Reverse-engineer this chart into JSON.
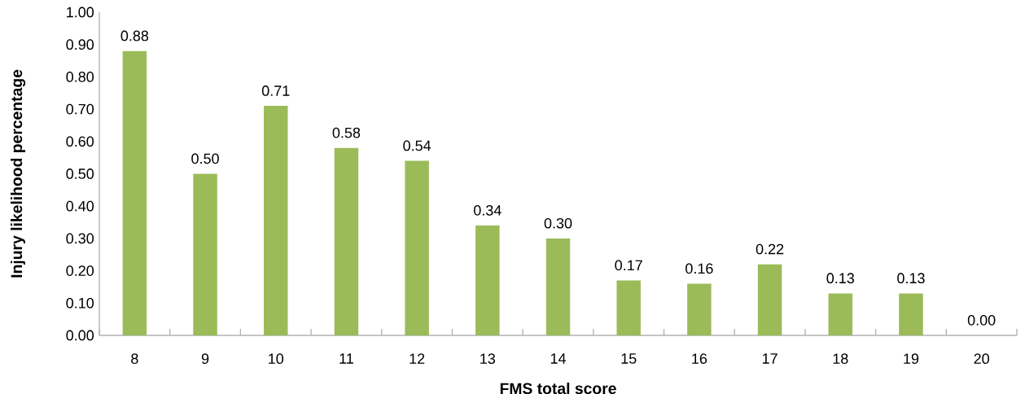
{
  "chart_data": {
    "type": "bar",
    "xlabel": "FMS total score",
    "ylabel": "Injury likelihood percentage",
    "categories": [
      "8",
      "9",
      "10",
      "11",
      "12",
      "13",
      "14",
      "15",
      "16",
      "17",
      "18",
      "19",
      "20"
    ],
    "values": [
      0.88,
      0.5,
      0.71,
      0.58,
      0.54,
      0.34,
      0.3,
      0.17,
      0.16,
      0.22,
      0.13,
      0.13,
      0.0
    ],
    "value_labels": [
      "0.88",
      "0.50",
      "0.71",
      "0.58",
      "0.54",
      "0.34",
      "0.30",
      "0.17",
      "0.16",
      "0.22",
      "0.13",
      "0.13",
      "0.00"
    ],
    "color": "#9bbb59",
    "ylim": [
      0,
      1
    ],
    "yticks": [
      {
        "value": 0,
        "label": "0.00"
      },
      {
        "value": 0.1,
        "label": "0.10"
      },
      {
        "value": 0.2,
        "label": "0.20"
      },
      {
        "value": 0.3,
        "label": "0.30"
      },
      {
        "value": 0.4,
        "label": "0.40"
      },
      {
        "value": 0.5,
        "label": "0.50"
      },
      {
        "value": 0.6,
        "label": "0.60"
      },
      {
        "value": 0.7,
        "label": "0.70"
      },
      {
        "value": 0.8,
        "label": "0.80"
      },
      {
        "value": 0.9,
        "label": "0.90"
      },
      {
        "value": 1,
        "label": "1.00"
      }
    ],
    "grid": false
  }
}
